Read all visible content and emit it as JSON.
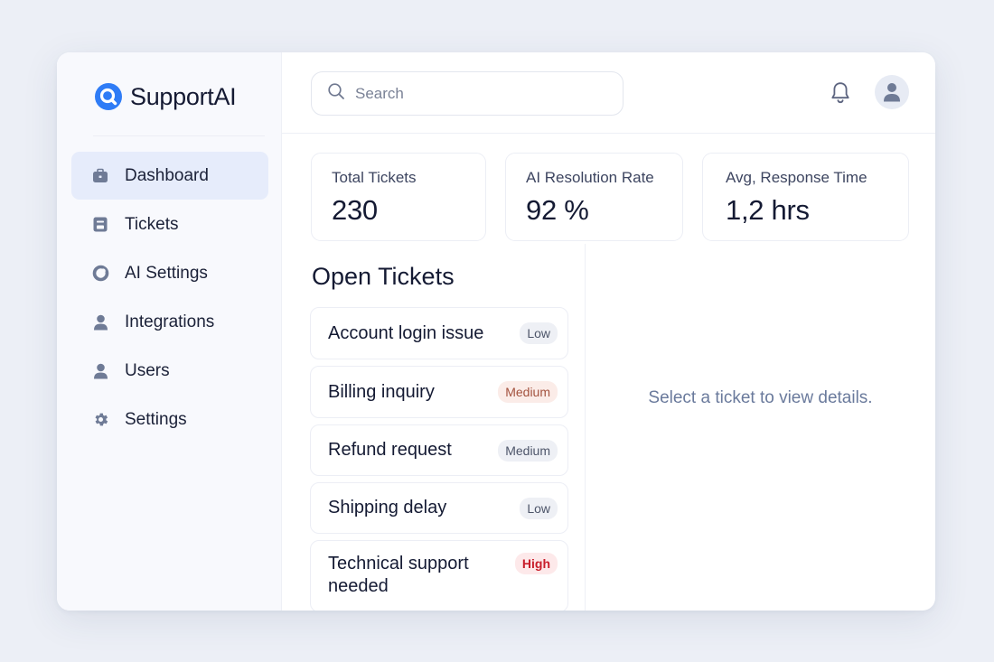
{
  "brand": {
    "name": "SupportAI",
    "accent": "#2f7cf6"
  },
  "nav": {
    "items": [
      {
        "label": "Dashboard",
        "icon": "briefcase-icon",
        "active": true
      },
      {
        "label": "Tickets",
        "icon": "ticket-icon",
        "active": false
      },
      {
        "label": "AI Settings",
        "icon": "ai-ring-icon",
        "active": false
      },
      {
        "label": "Integrations",
        "icon": "person-icon",
        "active": false
      },
      {
        "label": "Users",
        "icon": "person-icon",
        "active": false
      },
      {
        "label": "Settings",
        "icon": "gear-icon",
        "active": false
      }
    ]
  },
  "header": {
    "search_placeholder": "Search",
    "search_value": "",
    "notifications_icon": "bell-icon",
    "avatar_icon": "user-avatar-icon"
  },
  "stats": [
    {
      "label": "Total Tickets",
      "value": "230"
    },
    {
      "label": "AI Resolution Rate",
      "value": "92 %"
    },
    {
      "label": "Avg, Response Time",
      "value": "1,2 hrs"
    }
  ],
  "open_tickets": {
    "title": "Open Tickets",
    "items": [
      {
        "title": "Account login issue",
        "priority": "Low"
      },
      {
        "title": "Billing inquiry",
        "priority": "Medium"
      },
      {
        "title": "Refund request",
        "priority": "Medium"
      },
      {
        "title": "Shipping delay",
        "priority": "Low"
      },
      {
        "title": "Technical support needed",
        "priority": "High"
      }
    ]
  },
  "detail": {
    "empty_message": "Select a ticket to view details."
  },
  "colors": {
    "badge_low": "#eef0f5",
    "badge_medium_warm": "#fbece8",
    "badge_high": "#fde9ea",
    "high_text": "#c81e2b",
    "nav_active": "#e6ecfb"
  }
}
